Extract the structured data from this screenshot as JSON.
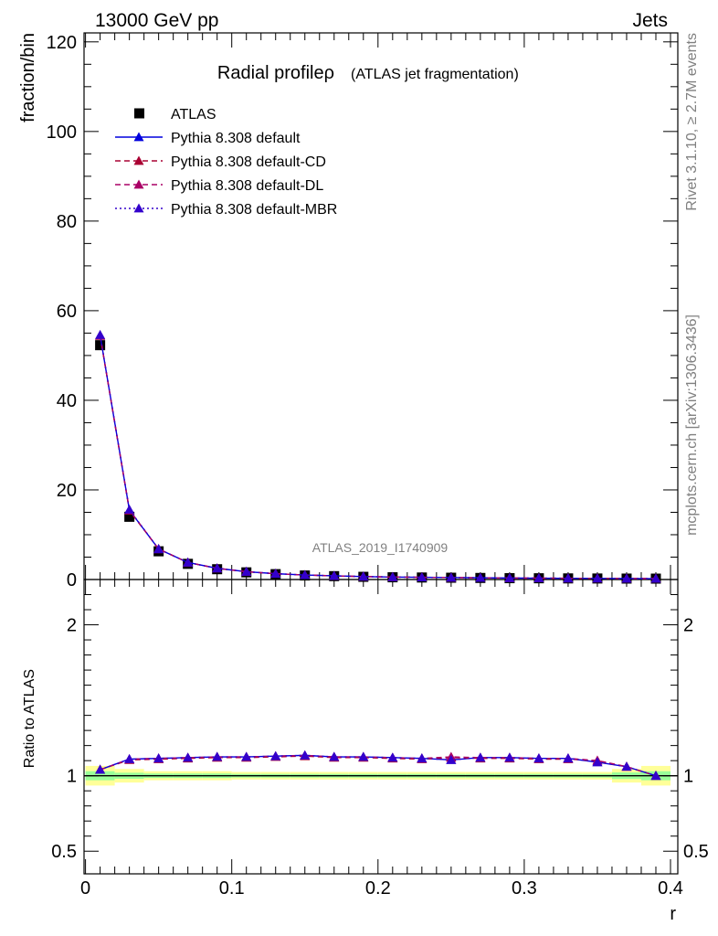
{
  "header": {
    "left": "13000 GeV pp",
    "right": "Jets"
  },
  "side_labels": {
    "rivet": "Rivet 3.1.10, ≥ 2.7M events",
    "mcplots": "mcplots.cern.ch [arXiv:1306.3436]"
  },
  "watermark": "ATLAS_2019_I1740909",
  "chart_data": [
    {
      "type": "line",
      "title": "Radial profileρ",
      "subtitle": "(ATLAS jet fragmentation)",
      "ylabel": "fraction/bin",
      "xlabel": "r",
      "xlim": [
        -0.001,
        0.405
      ],
      "ylim": [
        0,
        122
      ],
      "yticks": [
        0,
        20,
        40,
        60,
        80,
        100,
        120
      ],
      "ytick_labels": [
        "0",
        "20",
        "40",
        "60",
        "80",
        "100",
        "120"
      ],
      "x": [
        0.01,
        0.03,
        0.05,
        0.07,
        0.09,
        0.11,
        0.13,
        0.15,
        0.17,
        0.19,
        0.21,
        0.23,
        0.25,
        0.27,
        0.29,
        0.31,
        0.33,
        0.35,
        0.37,
        0.39
      ],
      "legend": [
        {
          "label": "ATLAS",
          "color": "#000000",
          "marker": "square",
          "line": "none"
        },
        {
          "label": "Pythia 8.308 default",
          "color": "#0000dd",
          "marker": "triangle",
          "line": "solid"
        },
        {
          "label": "Pythia 8.308 default-CD",
          "color": "#aa0033",
          "marker": "triangle",
          "line": "dashed"
        },
        {
          "label": "Pythia 8.308 default-DL",
          "color": "#aa0066",
          "marker": "triangle",
          "line": "dashed"
        },
        {
          "label": "Pythia 8.308 default-MBR",
          "color": "#3300cc",
          "marker": "triangle",
          "line": "dotted"
        }
      ],
      "series": [
        {
          "name": "ATLAS",
          "values": [
            52.3,
            14.0,
            6.3,
            3.5,
            2.3,
            1.6,
            1.2,
            0.9,
            0.75,
            0.6,
            0.5,
            0.45,
            0.4,
            0.35,
            0.3,
            0.28,
            0.25,
            0.23,
            0.21,
            0.2
          ]
        },
        {
          "name": "Pythia 8.308 default",
          "values": [
            54.5,
            15.5,
            6.8,
            3.8,
            2.5,
            1.75,
            1.3,
            1.0,
            0.82,
            0.66,
            0.55,
            0.49,
            0.44,
            0.38,
            0.33,
            0.3,
            0.27,
            0.25,
            0.22,
            0.2
          ]
        },
        {
          "name": "Pythia 8.308 default-CD",
          "values": [
            54.4,
            15.4,
            6.8,
            3.8,
            2.5,
            1.74,
            1.3,
            1.0,
            0.82,
            0.66,
            0.55,
            0.49,
            0.44,
            0.38,
            0.33,
            0.3,
            0.27,
            0.25,
            0.22,
            0.2
          ]
        },
        {
          "name": "Pythia 8.308 default-DL",
          "values": [
            54.5,
            15.5,
            6.8,
            3.8,
            2.5,
            1.75,
            1.3,
            1.0,
            0.82,
            0.66,
            0.55,
            0.49,
            0.44,
            0.38,
            0.33,
            0.3,
            0.27,
            0.25,
            0.22,
            0.2
          ]
        },
        {
          "name": "Pythia 8.308 default-MBR",
          "values": [
            54.6,
            15.6,
            6.8,
            3.8,
            2.5,
            1.75,
            1.3,
            1.0,
            0.82,
            0.66,
            0.55,
            0.49,
            0.44,
            0.38,
            0.33,
            0.3,
            0.27,
            0.25,
            0.22,
            0.2
          ]
        }
      ]
    },
    {
      "type": "line",
      "ylabel": "Ratio to ATLAS",
      "xlabel": "r",
      "xlim": [
        -0.001,
        0.405
      ],
      "ylim": [
        0.35,
        2.3
      ],
      "yticks": [
        0.5,
        1,
        2
      ],
      "ytick_labels": [
        "0.5",
        "1",
        "2"
      ],
      "xticks": [
        0,
        0.1,
        0.2,
        0.3,
        0.4
      ],
      "xtick_labels": [
        "0",
        "0.1",
        "0.2",
        "0.3",
        "0.4"
      ],
      "x": [
        0.01,
        0.03,
        0.05,
        0.07,
        0.09,
        0.11,
        0.13,
        0.15,
        0.17,
        0.19,
        0.21,
        0.23,
        0.25,
        0.27,
        0.29,
        0.31,
        0.33,
        0.35,
        0.37,
        0.39
      ],
      "reference_line": 1,
      "uncertainty_bands": {
        "x_edges": [
          0,
          0.02,
          0.04,
          0.06,
          0.08,
          0.1,
          0.12,
          0.14,
          0.16,
          0.18,
          0.2,
          0.22,
          0.24,
          0.26,
          0.28,
          0.3,
          0.32,
          0.34,
          0.36,
          0.38,
          0.4
        ],
        "outer": [
          0.065,
          0.045,
          0.03,
          0.03,
          0.03,
          0.025,
          0.025,
          0.025,
          0.025,
          0.025,
          0.025,
          0.025,
          0.025,
          0.025,
          0.025,
          0.025,
          0.025,
          0.025,
          0.045,
          0.065
        ],
        "inner": [
          0.03,
          0.02,
          0.015,
          0.015,
          0.015,
          0.012,
          0.012,
          0.012,
          0.012,
          0.012,
          0.012,
          0.012,
          0.012,
          0.012,
          0.012,
          0.012,
          0.012,
          0.012,
          0.022,
          0.03
        ],
        "outer_color": "#ffff99",
        "inner_color": "#99ff99"
      },
      "series": [
        {
          "name": "Pythia 8.308 default",
          "values": [
            1.04,
            1.11,
            1.115,
            1.12,
            1.125,
            1.125,
            1.13,
            1.135,
            1.125,
            1.125,
            1.12,
            1.115,
            1.105,
            1.12,
            1.12,
            1.115,
            1.115,
            1.09,
            1.06,
            1.0
          ]
        },
        {
          "name": "Pythia 8.308 default-CD",
          "values": [
            1.04,
            1.105,
            1.11,
            1.115,
            1.12,
            1.12,
            1.125,
            1.13,
            1.12,
            1.12,
            1.115,
            1.11,
            1.12,
            1.115,
            1.115,
            1.11,
            1.11,
            1.1,
            1.06,
            1.0
          ]
        },
        {
          "name": "Pythia 8.308 default-DL",
          "values": [
            1.04,
            1.11,
            1.115,
            1.12,
            1.125,
            1.125,
            1.13,
            1.135,
            1.125,
            1.125,
            1.12,
            1.115,
            1.125,
            1.12,
            1.12,
            1.115,
            1.115,
            1.1,
            1.06,
            1.0
          ]
        },
        {
          "name": "Pythia 8.308 default-MBR",
          "values": [
            1.04,
            1.11,
            1.115,
            1.12,
            1.125,
            1.125,
            1.13,
            1.135,
            1.125,
            1.125,
            1.12,
            1.115,
            1.105,
            1.12,
            1.12,
            1.115,
            1.115,
            1.09,
            1.06,
            1.0
          ]
        }
      ]
    }
  ]
}
